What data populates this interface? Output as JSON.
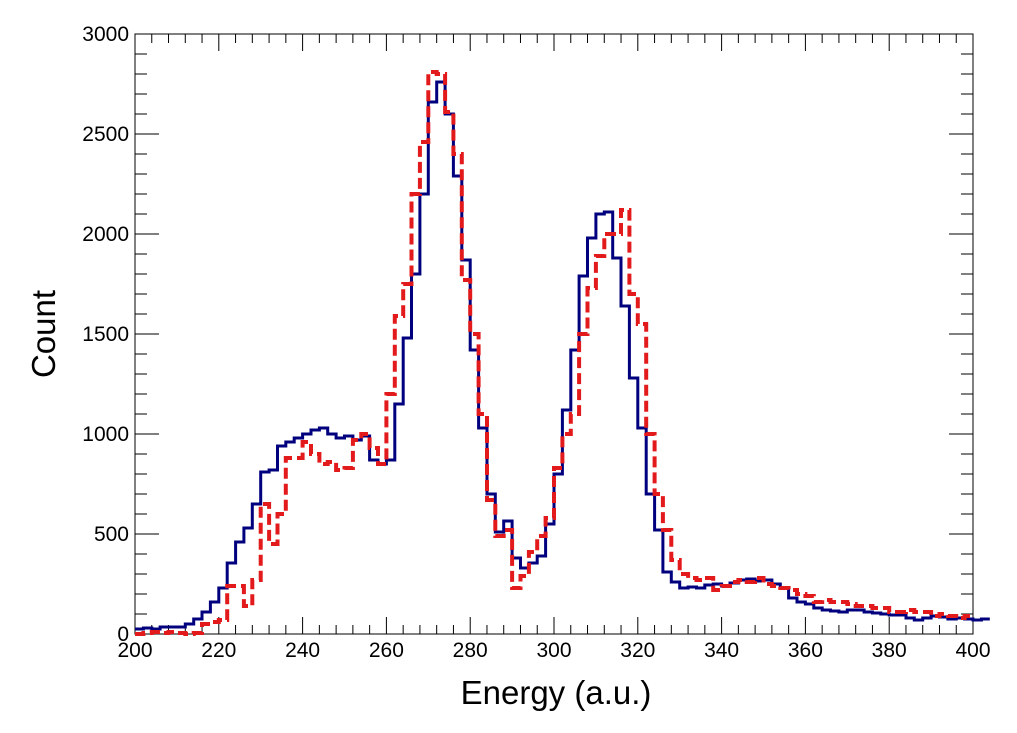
{
  "chart_data": {
    "type": "histogram",
    "xlabel": "Energy (a.u.)",
    "ylabel": "Count",
    "xlim": [
      200,
      400
    ],
    "ylim": [
      0,
      3000
    ],
    "x_ticks": [
      "200",
      "220",
      "240",
      "260",
      "280",
      "300",
      "320",
      "340",
      "360",
      "380",
      "400"
    ],
    "y_ticks": [
      "0",
      "500",
      "1000",
      "1500",
      "2000",
      "2500",
      "3000"
    ],
    "grid": false,
    "legend": "none",
    "series": [
      {
        "color": "#00007f",
        "style": "solid",
        "bin_edges_start": 200,
        "bin_width": 2,
        "values": [
          25,
          30,
          25,
          35,
          35,
          35,
          50,
          75,
          110,
          160,
          230,
          355,
          460,
          530,
          650,
          810,
          820,
          940,
          960,
          980,
          1000,
          1020,
          1030,
          1000,
          980,
          990,
          970,
          990,
          870,
          850,
          870,
          1150,
          1480,
          1800,
          2200,
          2660,
          2760,
          2600,
          2290,
          1870,
          1420,
          1030,
          700,
          510,
          565,
          380,
          330,
          355,
          390,
          550,
          800,
          1120,
          1420,
          1790,
          1980,
          2100,
          2110,
          1880,
          1640,
          1280,
          1030,
          700,
          520,
          310,
          260,
          230,
          235,
          230,
          245,
          250,
          240,
          255,
          270,
          275,
          265,
          270,
          250,
          230,
          180,
          160,
          150,
          130,
          120,
          115,
          110,
          120,
          120,
          110,
          105,
          100,
          95,
          95,
          80,
          70,
          80,
          90,
          85,
          75,
          80,
          75,
          70,
          75
        ]
      },
      {
        "color": "#e31a1c",
        "style": "dashed",
        "bin_edges_start": 200,
        "bin_width": 2,
        "values": [
          0,
          5,
          10,
          5,
          10,
          5,
          0,
          5,
          50,
          60,
          70,
          240,
          240,
          140,
          270,
          650,
          450,
          600,
          880,
          880,
          960,
          900,
          850,
          860,
          820,
          830,
          970,
          1000,
          930,
          850,
          1200,
          1590,
          1750,
          2200,
          2460,
          2810,
          2800,
          2610,
          2400,
          1770,
          1500,
          1100,
          670,
          490,
          520,
          230,
          290,
          410,
          490,
          580,
          830,
          1000,
          1100,
          1500,
          1730,
          1890,
          2000,
          2000,
          2120,
          1700,
          1550,
          1000,
          700,
          520,
          370,
          300,
          280,
          270,
          280,
          220,
          240,
          260,
          270,
          260,
          280,
          250,
          240,
          230,
          220,
          200,
          190,
          160,
          170,
          160,
          160,
          150,
          140,
          140,
          130,
          130,
          110,
          110,
          120,
          110,
          110,
          90,
          100,
          90,
          80,
          90
        ]
      }
    ]
  }
}
